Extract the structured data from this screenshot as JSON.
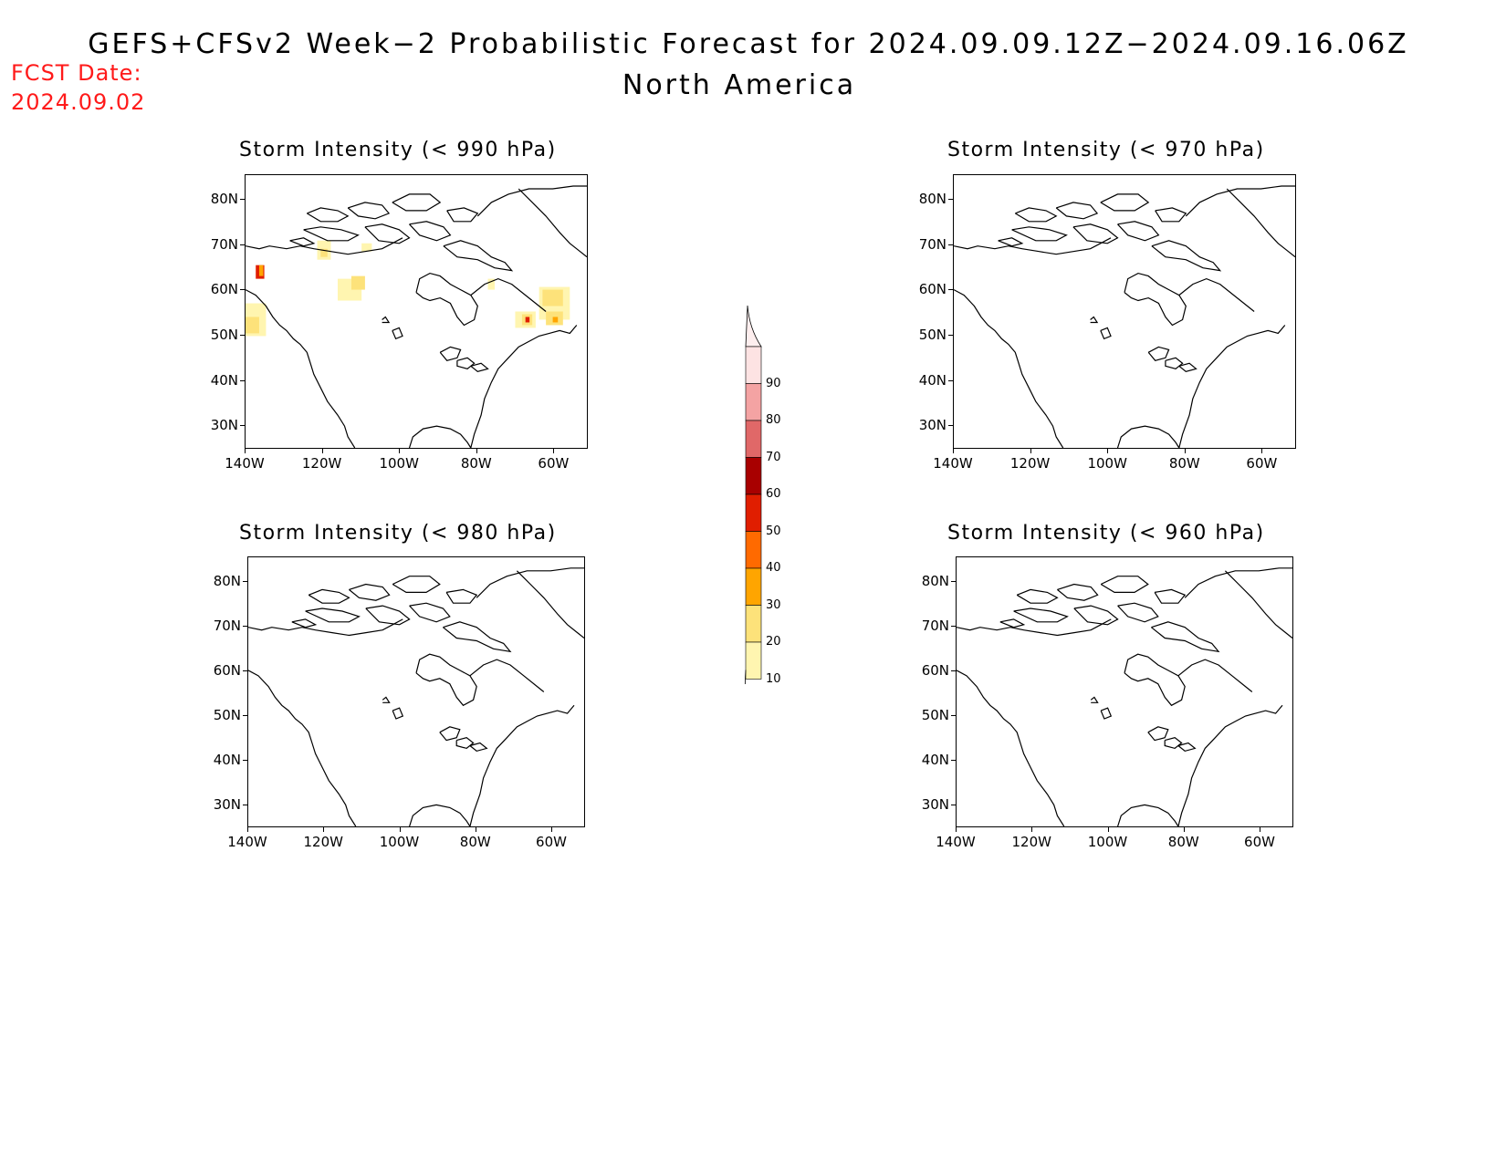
{
  "header": {
    "title": "GEFS+CFSv2 Week−2 Probabilistic Forecast for 2024.09.09.12Z−2024.09.16.06Z",
    "subtitle": "North America",
    "fcst_label": "FCST Date:",
    "fcst_date": "2024.09.02"
  },
  "axes": {
    "lat_labels": [
      "80N",
      "70N",
      "60N",
      "50N",
      "40N",
      "30N"
    ],
    "lon_labels": [
      "140W",
      "120W",
      "100W",
      "80W",
      "60W"
    ]
  },
  "panels": [
    {
      "id": "p990",
      "title": "Storm Intensity (< 990 hPa)",
      "has_shading": true
    },
    {
      "id": "p970",
      "title": "Storm Intensity (< 970 hPa)",
      "has_shading": false
    },
    {
      "id": "p980",
      "title": "Storm Intensity (< 980 hPa)",
      "has_shading": false
    },
    {
      "id": "p960",
      "title": "Storm Intensity (< 960 hPa)",
      "has_shading": false
    }
  ],
  "colorbar": {
    "labels": [
      "90",
      "80",
      "70",
      "60",
      "50",
      "40",
      "30",
      "20",
      "10"
    ],
    "colors": [
      "#fde3e3",
      "#f4a3a3",
      "#e06868",
      "#a80000",
      "#e01e00",
      "#ff6a00",
      "#ffa500",
      "#fde27a",
      "#fff5b0"
    ]
  },
  "shading_colors": {
    "light": "#fff5b0",
    "yellow": "#fde27a",
    "orange": "#ffa500",
    "red": "#e01e00"
  }
}
